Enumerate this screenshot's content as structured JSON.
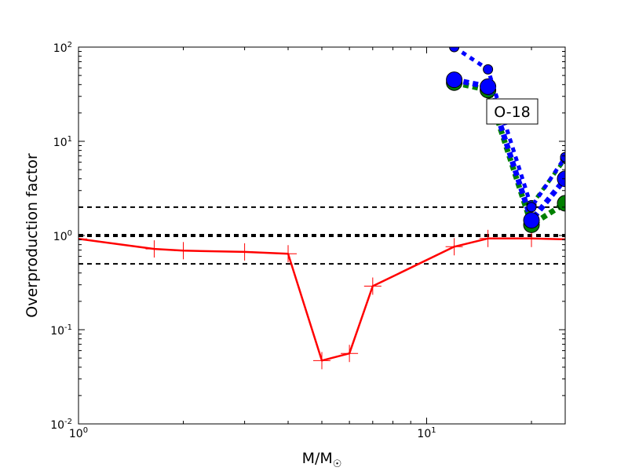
{
  "chart_data": {
    "type": "line",
    "title": "",
    "xlabel": "M/M",
    "xlabel_sub": "☉",
    "ylabel": "Overproduction factor",
    "xscale": "log",
    "yscale": "log",
    "xlim": [
      1,
      25
    ],
    "ylim": [
      0.01,
      100
    ],
    "x_ticks": [
      {
        "value": 1,
        "base": "10",
        "exp": "0"
      },
      {
        "value": 10,
        "base": "10",
        "exp": "1"
      }
    ],
    "y_ticks": [
      {
        "value": 0.01,
        "base": "10",
        "exp": "-2"
      },
      {
        "value": 0.1,
        "base": "10",
        "exp": "-1"
      },
      {
        "value": 1,
        "base": "10",
        "exp": "0"
      },
      {
        "value": 10,
        "base": "10",
        "exp": "1"
      },
      {
        "value": 100,
        "base": "10",
        "exp": "2"
      }
    ],
    "reference_lines": [
      {
        "y": 2.0,
        "style": "dashed",
        "color": "#000000",
        "width": 2
      },
      {
        "y": 1.0,
        "style": "dashed",
        "color": "#000000",
        "width": 4
      },
      {
        "y": 0.5,
        "style": "dashed",
        "color": "#000000",
        "width": 2
      }
    ],
    "series": [
      {
        "style": "solid",
        "color": "#ff0000",
        "marker": "plus",
        "points": [
          [
            1,
            0.92
          ],
          [
            1.65,
            0.72
          ],
          [
            2,
            0.69
          ],
          [
            3,
            0.67
          ],
          [
            4,
            0.64
          ],
          [
            5,
            0.047
          ],
          [
            6,
            0.056
          ],
          [
            7,
            0.29
          ],
          [
            12,
            0.76
          ],
          [
            15,
            0.93
          ],
          [
            20,
            0.93
          ],
          [
            25,
            0.91
          ]
        ]
      },
      {
        "style": "dotted",
        "color": "#008000",
        "marker": "circle",
        "points": [
          [
            12,
            42
          ],
          [
            15,
            35
          ],
          [
            20,
            1.3
          ],
          [
            25,
            2.2
          ]
        ]
      },
      {
        "style": "dotted",
        "color": "#0000ff",
        "marker": "circle",
        "points": [
          [
            12,
            45
          ],
          [
            15,
            38
          ],
          [
            20,
            1.45
          ],
          [
            25,
            4.0
          ]
        ]
      },
      {
        "style": "dotted",
        "color": "#008000",
        "marker": "circle-small",
        "points": [
          [
            20,
            2.1
          ],
          [
            25,
            6.5
          ]
        ]
      },
      {
        "style": "dotted",
        "color": "#0000ff",
        "marker": "circle-small",
        "points": [
          [
            12,
            100
          ],
          [
            15,
            58
          ],
          [
            20,
            2.0
          ],
          [
            25,
            6.8
          ]
        ]
      }
    ],
    "annotation": {
      "text": "O-18",
      "x": 18,
      "y": 20
    }
  }
}
